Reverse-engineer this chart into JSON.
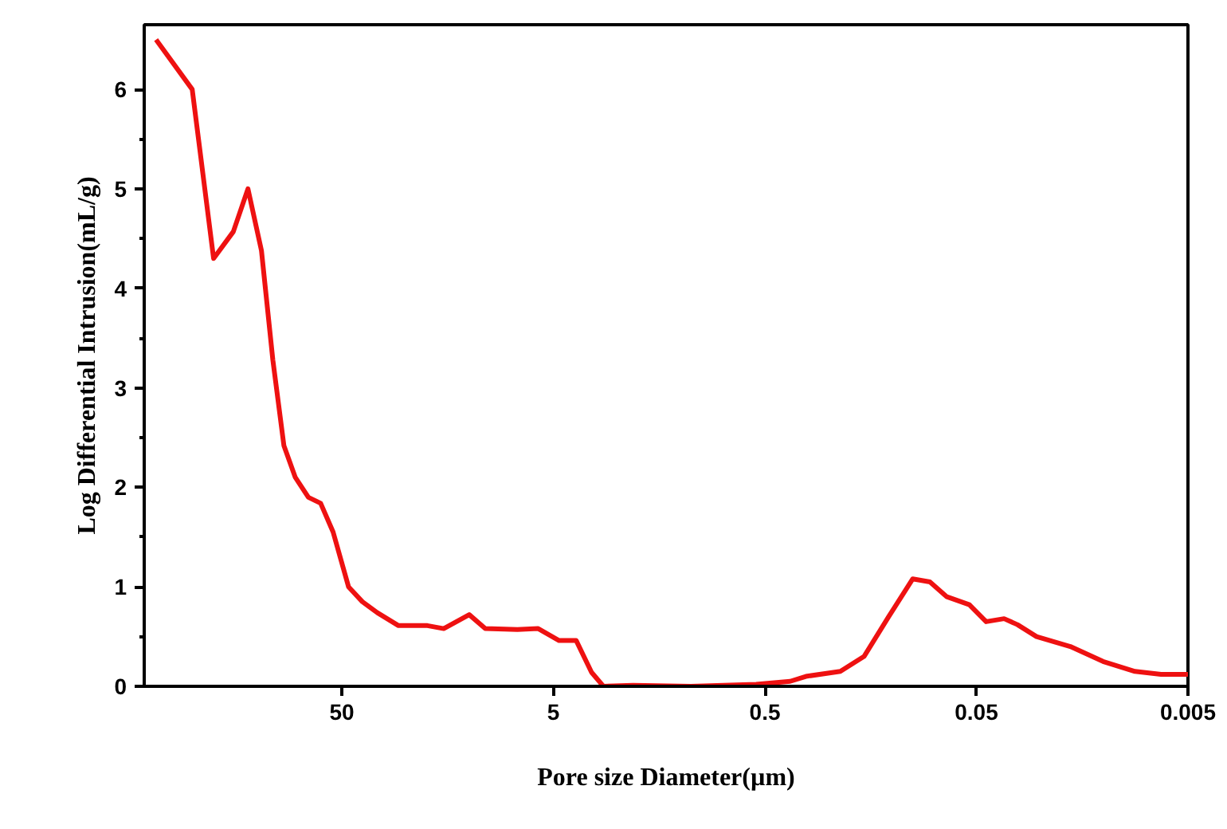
{
  "chart_data": {
    "type": "line",
    "xlabel": "Pore size Diameter(µm)",
    "ylabel": "Log Differential Intrusion(mL/g)",
    "log": "x",
    "xlim": [
      430,
      0.005
    ],
    "xticks": [
      50,
      5,
      0.5,
      0.05,
      0.005
    ],
    "ylim": [
      0,
      6.65
    ],
    "yticks": [
      0,
      1,
      2,
      3,
      4,
      5,
      6
    ],
    "grid": false,
    "marker": "none",
    "line_style": "solid",
    "series": [
      {
        "color": "#ee1111",
        "x": [
          378,
          255,
          202,
          163,
          139,
          120,
          106,
          94,
          83,
          72,
          63,
          55,
          46.5,
          40,
          34,
          27,
          19.7,
          16.5,
          12.5,
          10.5,
          7.4,
          5.9,
          4.7,
          3.9,
          3.3,
          2.9,
          2.1,
          1.12,
          0.55,
          0.38,
          0.32,
          0.22,
          0.17,
          0.13,
          0.1,
          0.083,
          0.069,
          0.054,
          0.045,
          0.037,
          0.032,
          0.026,
          0.018,
          0.0126,
          0.0089,
          0.0067,
          0.005
        ],
        "values": [
          6.5,
          6.0,
          4.3,
          4.57,
          5.0,
          4.38,
          3.28,
          2.42,
          2.1,
          1.9,
          1.84,
          1.55,
          1.0,
          0.85,
          0.74,
          0.61,
          0.61,
          0.58,
          0.72,
          0.58,
          0.57,
          0.58,
          0.46,
          0.46,
          0.14,
          0.0,
          0.01,
          0.0,
          0.02,
          0.05,
          0.1,
          0.15,
          0.3,
          0.7,
          1.08,
          1.05,
          0.9,
          0.82,
          0.65,
          0.68,
          0.62,
          0.5,
          0.4,
          0.25,
          0.15,
          0.12,
          0.12
        ]
      }
    ]
  }
}
